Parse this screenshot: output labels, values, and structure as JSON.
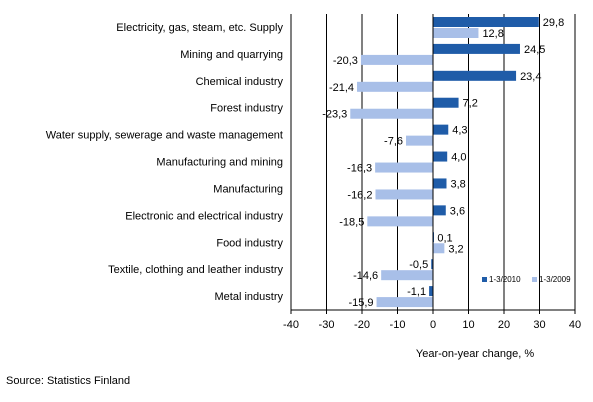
{
  "chart_data": {
    "type": "bar",
    "orientation": "horizontal",
    "categories": [
      "Electricity, gas, steam, etc. Supply",
      "Mining and quarrying",
      "Chemical industry",
      "Forest industry",
      "Water supply, sewerage and waste management",
      "Manufacturing and mining",
      "Manufacturing",
      "Electronic and electrical industry",
      "Food industry",
      "Textile, clothing and leather industry",
      "Metal industry"
    ],
    "series": [
      {
        "name": "1-3/2010",
        "color": "#1f5ca8",
        "values": [
          29.8,
          24.5,
          23.4,
          7.2,
          4.3,
          4.0,
          3.8,
          3.6,
          0.1,
          -0.5,
          -1.1
        ],
        "labels": [
          "29,8",
          "24,5",
          "23,4",
          "7,2",
          "4,3",
          "4,0",
          "3,8",
          "3,6",
          "0,1",
          "-0,5",
          "-1,1"
        ]
      },
      {
        "name": "1-3/2009",
        "color": "#a8bfe8",
        "values": [
          12.8,
          -20.3,
          -21.4,
          -23.3,
          -7.6,
          -16.3,
          -16.2,
          -18.5,
          3.2,
          -14.6,
          -15.9
        ],
        "labels": [
          "12,8",
          "-20,3",
          "-21,4",
          "-23,3",
          "-7,6",
          "-16,3",
          "-16,2",
          "-18,5",
          "3,2",
          "-14,6",
          "-15,9"
        ]
      }
    ],
    "xlabel": "Year-on-year change, %",
    "xlim": [
      -40,
      40
    ],
    "xticks": [
      -40,
      -30,
      -20,
      -10,
      0,
      10,
      20,
      30,
      40
    ],
    "grid": "vertical",
    "legend_position": "bottom-right"
  },
  "source": "Source: Statistics Finland"
}
